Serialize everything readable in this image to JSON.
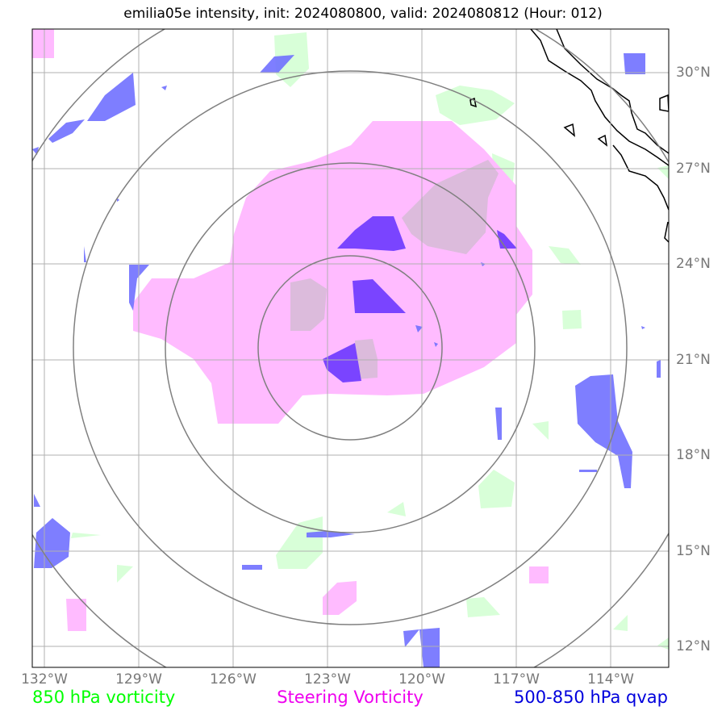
{
  "title": "emilia05e intensity, init: 2024080800, valid: 2024080812 (Hour: 012)",
  "map": {
    "lon_ticks": [
      "132°W",
      "129°W",
      "126°W",
      "123°W",
      "120°W",
      "117°W",
      "114°W"
    ],
    "lat_ticks": [
      "30°N",
      "27°N",
      "24°N",
      "21°N",
      "18°N",
      "15°N",
      "12°N"
    ],
    "range_rings": 4,
    "colors": {
      "vorticity_850": "#d8ffd8",
      "steering_vorticity": "#ffbbff",
      "qvap": "#7070ff",
      "rings": "#808080",
      "grid": "#b0b0b0",
      "coast": "#000000"
    }
  },
  "legend": [
    {
      "label": "850 hPa vorticity",
      "color": "#00ff00"
    },
    {
      "label": "Steering Vorticity",
      "color": "#ee00ee"
    },
    {
      "label": "500-850 hPa qvap",
      "color": "#0000dd"
    }
  ]
}
